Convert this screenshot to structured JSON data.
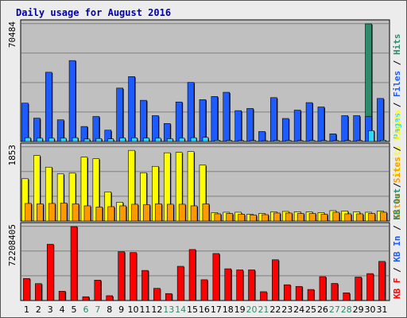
{
  "chart_data": {
    "type": "bar",
    "title": "Daily usage for August 2016",
    "categories": [
      "1",
      "2",
      "3",
      "4",
      "5",
      "6",
      "7",
      "8",
      "9",
      "10",
      "11",
      "12",
      "13",
      "14",
      "15",
      "16",
      "17",
      "18",
      "19",
      "20",
      "21",
      "22",
      "23",
      "24",
      "25",
      "26",
      "27",
      "28",
      "29",
      "30",
      "31"
    ],
    "weekend_days": [
      "6",
      "7",
      "13",
      "14",
      "20",
      "21",
      "27",
      "28"
    ],
    "panels": [
      {
        "id": "hits-files-pages",
        "ymax_label": "70484",
        "ymax": 70484,
        "series": [
          {
            "name": "Hits",
            "color": "#2e8b6e",
            "values": [
              0,
              0,
              0,
              0,
              0,
              0,
              0,
              0,
              0,
              0,
              0,
              0,
              0,
              0,
              0,
              0,
              0,
              0,
              0,
              0,
              0,
              0,
              0,
              0,
              0,
              0,
              0,
              0,
              0,
              70484,
              0
            ]
          },
          {
            "name": "Files",
            "color": "#1c5cff",
            "values": [
              23000,
              14000,
              41500,
              13000,
              48500,
              9000,
              15000,
              6800,
              32000,
              38900,
              24700,
              15500,
              10800,
              23700,
              35400,
              25100,
              27000,
              29500,
              18500,
              19800,
              6000,
              26300,
              13800,
              18800,
              23300,
              20700,
              4600,
              15500,
              15500,
              14900,
              25800
            ]
          },
          {
            "name": "Pages",
            "color": "#33d6ff",
            "values": [
              2300,
              2000,
              2000,
              2000,
              2300,
              1500,
              1800,
              1600,
              2100,
              2200,
              2100,
              2000,
              1700,
              2000,
              2300,
              2500,
              800,
              700,
              600,
              650,
              500,
              700,
              700,
              600,
              700,
              650,
              600,
              650,
              600,
              6500,
              800
            ]
          }
        ],
        "legend": [
          "Pages",
          "/",
          "Files",
          "/",
          "Hits"
        ]
      },
      {
        "id": "visits-sites",
        "ymax_label": "1853",
        "ymax": 1853,
        "series": [
          {
            "name": "Visits",
            "color": "#ffff00",
            "values": [
              1060,
              1640,
              1350,
              1180,
              1200,
              1600,
              1560,
              730,
              470,
              1770,
              1210,
              1370,
              1710,
              1720,
              1740,
              1400,
              210,
              220,
              220,
              170,
              190,
              230,
              240,
              230,
              230,
              210,
              260,
              250,
              230,
              220,
              250
            ]
          },
          {
            "name": "Sites",
            "color": "#ff9900",
            "values": [
              440,
              430,
              440,
              450,
              430,
              380,
              350,
              360,
              380,
              420,
              410,
              430,
              420,
              420,
              380,
              430,
              180,
              190,
              170,
              150,
              160,
              200,
              200,
              190,
              190,
              170,
              220,
              180,
              180,
              190,
              220
            ]
          }
        ],
        "legend": [
          "Sites",
          "/",
          "Visits"
        ]
      },
      {
        "id": "kbytes",
        "ymax_label": "72208405",
        "ymax": 72208405,
        "series": [
          {
            "name": "KB F",
            "color": "#ff0000",
            "values": [
              21500000,
              16500000,
              55000000,
              9100000,
              72208405,
              3700000,
              19900000,
              4700000,
              47700000,
              46900000,
              29400000,
              11900000,
              6800000,
              33400000,
              49800000,
              20300000,
              45900000,
              31000000,
              29900000,
              29900000,
              8600000,
              39800000,
              15400000,
              13800000,
              10800000,
              23300000,
              16700000,
              7500000,
              22900000,
              26300000,
              38200000
            ]
          }
        ],
        "legend": [
          "KB F",
          "/",
          "KB In",
          "/",
          "KB Out",
          "Sites",
          "/",
          "Visits"
        ]
      }
    ],
    "grid": true
  }
}
